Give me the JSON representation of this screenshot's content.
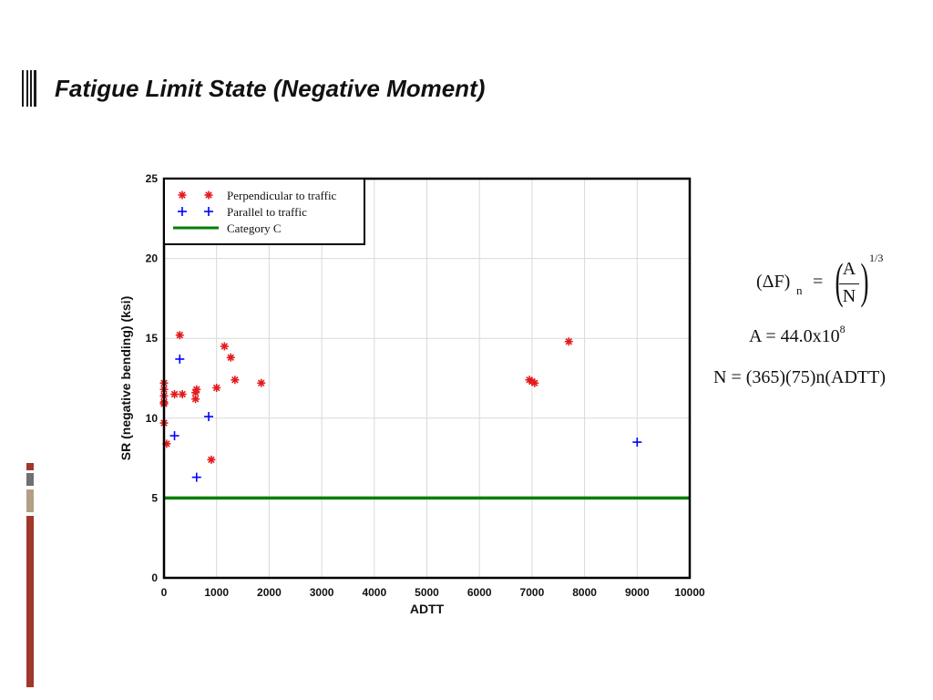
{
  "slide": {
    "title": "Fatigue Limit State (Negative Moment)"
  },
  "theme": {
    "accent_dark": "#a0372b",
    "accent_grey": "#707070",
    "accent_tan": "#b39f84"
  },
  "chart_data": {
    "type": "scatter",
    "xlabel": "ADTT",
    "ylabel": "SR (negative bending) (ksi)",
    "xlim": [
      0,
      10000
    ],
    "ylim": [
      0,
      25
    ],
    "x_ticks": [
      0,
      1000,
      2000,
      3000,
      4000,
      5000,
      6000,
      7000,
      8000,
      9000,
      10000
    ],
    "y_ticks": [
      0,
      5,
      10,
      15,
      20,
      25
    ],
    "grid": true,
    "legend_position": "top-left",
    "series": [
      {
        "name": "Perpendicular to traffic",
        "marker": "asterisk",
        "color": "#e41a1c",
        "points": [
          [
            0,
            12.2
          ],
          [
            0,
            11.8
          ],
          [
            0,
            11.4
          ],
          [
            0,
            11.0
          ],
          [
            0,
            10.9
          ],
          [
            0,
            9.7
          ],
          [
            50,
            8.4
          ],
          [
            200,
            11.5
          ],
          [
            300,
            15.2
          ],
          [
            350,
            11.5
          ],
          [
            600,
            11.6
          ],
          [
            600,
            11.2
          ],
          [
            620,
            11.8
          ],
          [
            900,
            7.4
          ],
          [
            1000,
            11.9
          ],
          [
            1150,
            14.5
          ],
          [
            1270,
            13.8
          ],
          [
            1350,
            12.4
          ],
          [
            1850,
            12.2
          ],
          [
            6950,
            12.4
          ],
          [
            7000,
            12.3
          ],
          [
            7050,
            12.2
          ],
          [
            7700,
            14.8
          ]
        ]
      },
      {
        "name": "Parallel to traffic",
        "marker": "plus",
        "color": "#0000ff",
        "points": [
          [
            200,
            8.9
          ],
          [
            300,
            13.7
          ],
          [
            620,
            6.3
          ],
          [
            850,
            10.1
          ],
          [
            9000,
            8.5
          ]
        ]
      },
      {
        "name": "Category C",
        "marker": "line",
        "color": "#008000",
        "y": 5.0
      }
    ]
  },
  "formulas": {
    "f1_left": "(ΔF)",
    "f1_sub": "n",
    "f1_eq": "=",
    "f1_num": "A",
    "f1_den": "N",
    "f1_exp": "1/3",
    "f2_text": "A = 44.0x10",
    "f2_exp": "8",
    "f3_text": "N = (365)(75)n(ADTT)"
  }
}
